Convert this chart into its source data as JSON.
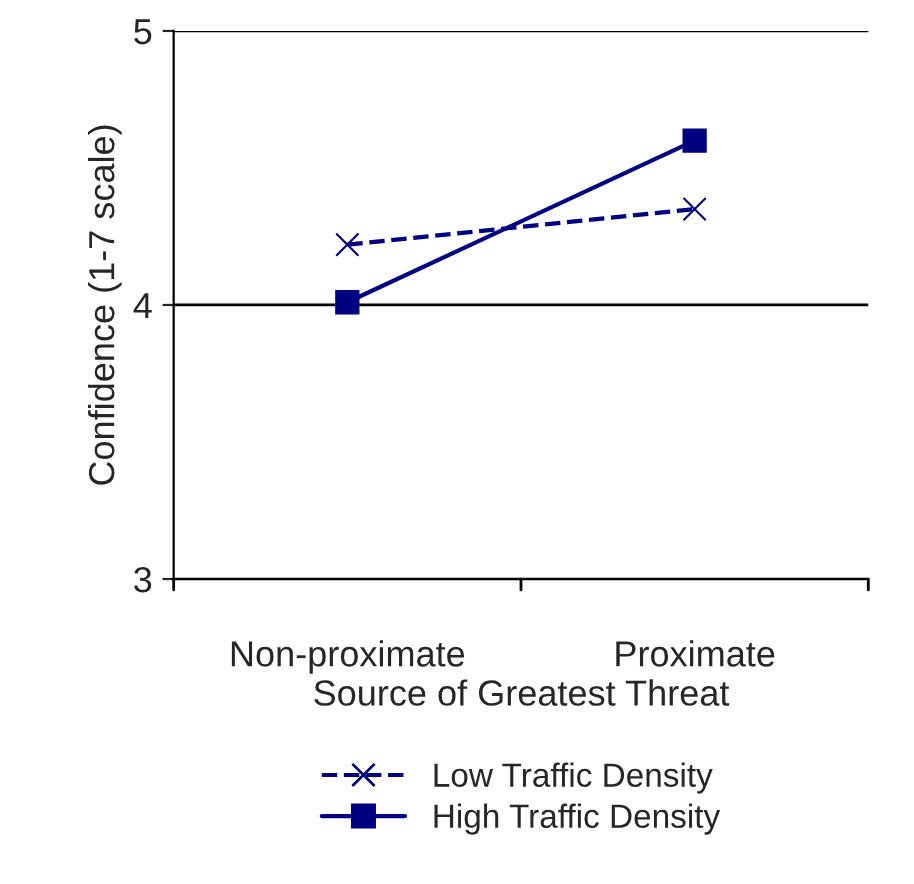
{
  "chart_data": {
    "type": "line",
    "xlabel": "Source of Greatest Threat",
    "ylabel": "Confidence (1-7 scale)",
    "categories": [
      "Non-proximate",
      "Proximate"
    ],
    "series": [
      {
        "name": "Low Traffic Density",
        "color": "#000080",
        "values": [
          4.22,
          4.35
        ],
        "marker": "cross",
        "line_style": "dashed"
      },
      {
        "name": "High Traffic Density",
        "color": "#000080",
        "values": [
          4.01,
          4.6
        ],
        "marker": "square",
        "line_style": "solid"
      }
    ],
    "ylim": [
      3,
      5
    ],
    "yticks": [
      3,
      4,
      5
    ],
    "grid": "y",
    "legend": "bottom"
  }
}
